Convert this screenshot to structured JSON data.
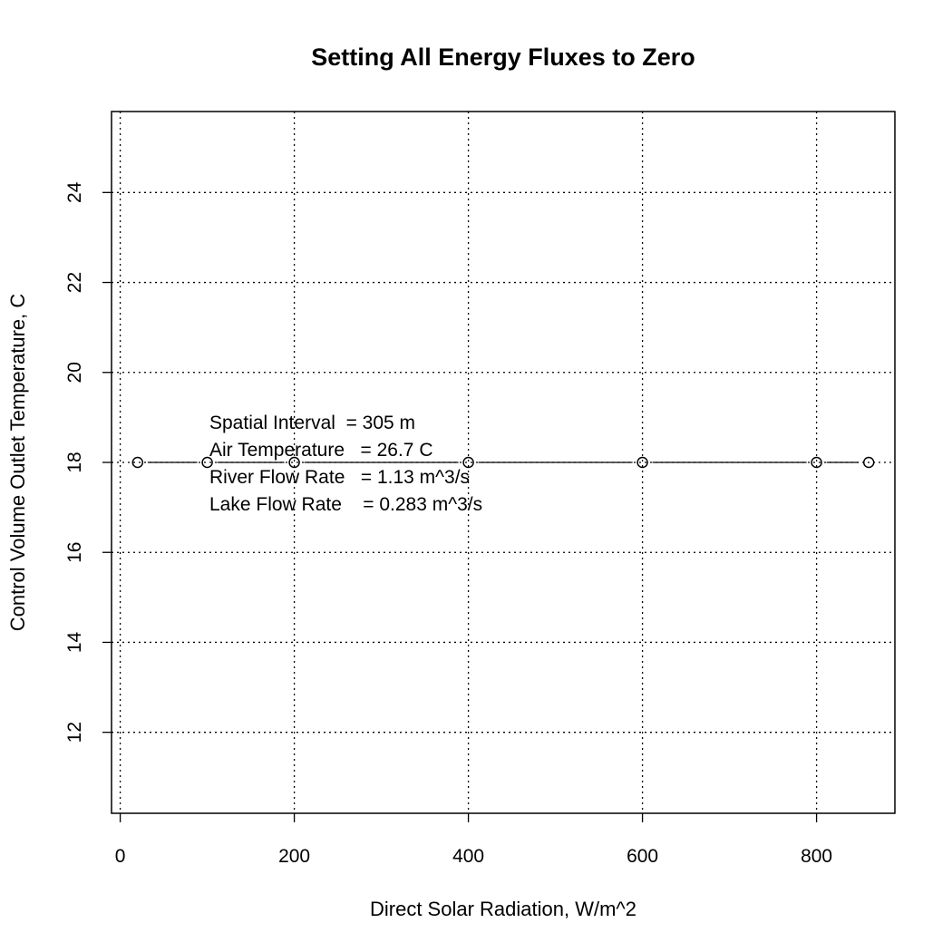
{
  "chart_data": {
    "type": "line",
    "title": "Setting All Energy Fluxes to Zero",
    "xlabel": "Direct Solar Radiation, W/m^2",
    "ylabel": "Control Volume Outlet Temperature, C",
    "xlim": [
      -10,
      890
    ],
    "ylim": [
      10.2,
      25.8
    ],
    "xticks": [
      "0",
      "200",
      "400",
      "600",
      "800"
    ],
    "yticks": [
      "12",
      "14",
      "16",
      "18",
      "20",
      "22",
      "24"
    ],
    "grid": true,
    "grid_style": "dotted",
    "marker": "open-circle",
    "series": [
      {
        "x": [
          20,
          100,
          200,
          400,
          600,
          800,
          860
        ],
        "y": [
          18,
          18,
          18,
          18,
          18,
          18,
          18
        ]
      }
    ],
    "annotations": [
      "Spatial Interval  = 305 m",
      "Air Temperature   = 26.7 C",
      "River Flow Rate   = 1.13 m^3/s",
      "Lake Flow Rate    = 0.283 m^3/s"
    ]
  }
}
